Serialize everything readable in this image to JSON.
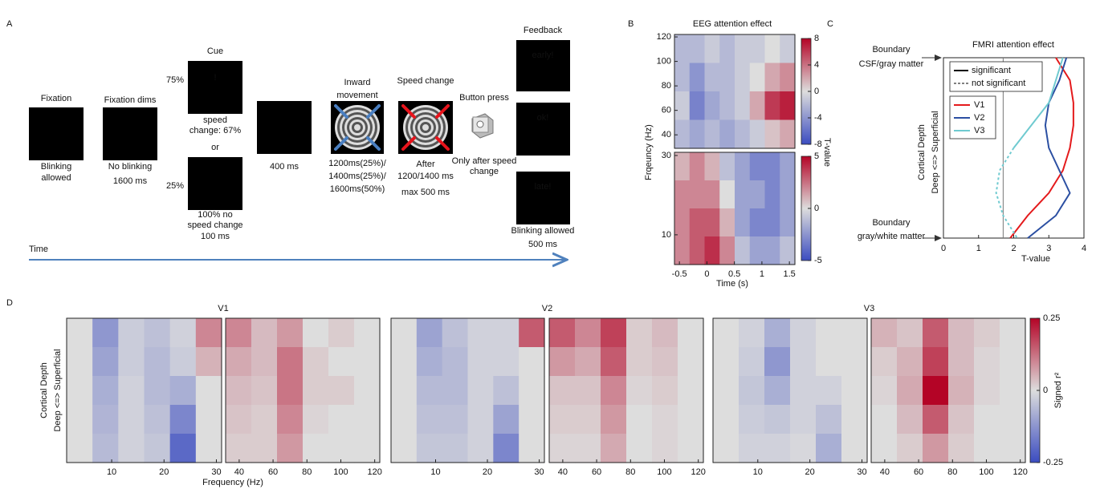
{
  "panel_labels": [
    "A",
    "B",
    "C",
    "D"
  ],
  "panel_a": {
    "fixation": {
      "title": "Fixation",
      "caption": [
        "Blinking",
        "allowed"
      ]
    },
    "fixation_dims": {
      "title": "Fixation dims",
      "caption": [
        "No blinking"
      ],
      "duration": "1600 ms"
    },
    "cue": {
      "title": "Cue",
      "symbol": "!",
      "valid_pct": "75%",
      "valid_caption": [
        "speed",
        "change: 67%"
      ],
      "or": "or",
      "invalid_pct": "25%",
      "invalid_caption": [
        "100% no",
        "speed change",
        "100 ms"
      ]
    },
    "delay": {
      "caption": "400 ms"
    },
    "inward": {
      "title": [
        "Inward",
        "movement"
      ],
      "caption": [
        "1200ms(25%)/",
        "1400ms(25%)/",
        "1600ms(50%)"
      ]
    },
    "speed_change": {
      "title": "Speed change",
      "caption": [
        "After",
        "1200/1400 ms",
        "max 500 ms"
      ]
    },
    "button": {
      "title": "Button press",
      "caption": [
        "Only after speed",
        "change"
      ]
    },
    "feedback": {
      "title": "Feedback",
      "messages": [
        "early!",
        "ok!",
        "late!"
      ],
      "caption": "Blinking allowed",
      "duration": "500 ms"
    },
    "time_label": "Time"
  },
  "panel_b": {
    "type": "heatmap",
    "title": "EEG attention effect",
    "ylabel": "Frqeuncy (Hz)",
    "xlabel": "Time (s)",
    "clabel": "T-value",
    "xlim": [
      -0.59,
      1.6
    ],
    "xticks": [
      -0.5,
      0,
      0.5,
      1,
      1.5
    ],
    "maps": [
      {
        "ylim": [
          29,
          122
        ],
        "yticks": [
          40,
          60,
          80,
          100,
          120
        ],
        "clim": [
          -8,
          8
        ],
        "cticks": [
          -8,
          -4,
          0,
          4,
          8
        ],
        "values": [
          [
            -2,
            -2,
            -1,
            -2,
            -1,
            -1,
            0,
            -1
          ],
          [
            -2,
            -4,
            -2,
            -2,
            -1,
            0,
            2,
            3
          ],
          [
            -1,
            -5,
            -3,
            -2,
            -1,
            2,
            6,
            7
          ],
          [
            -2,
            -3,
            -2,
            -3,
            -2,
            -1,
            1,
            2
          ]
        ]
      },
      {
        "ylim": [
          2.5,
          30.8
        ],
        "yticks": [
          10,
          30
        ],
        "clim": [
          -5,
          5
        ],
        "cticks": [
          -5,
          0,
          5
        ],
        "values": [
          [
            1,
            2,
            1,
            -1,
            -2,
            -3,
            -3,
            -2
          ],
          [
            2,
            2,
            2,
            0,
            -2,
            -2,
            -3,
            -2
          ],
          [
            2,
            3,
            3,
            1,
            -2,
            -3,
            -3,
            -2
          ],
          [
            2,
            3,
            4,
            2,
            -1,
            -2,
            -2,
            -1
          ]
        ]
      }
    ]
  },
  "panel_c": {
    "type": "line",
    "title": "FMRI attention effect",
    "xlabel": "T-value",
    "ylabel": [
      "Cortical Depth",
      "Deep <=> Superficial"
    ],
    "boundary_top": [
      "Boundary",
      "CSF/gray matter"
    ],
    "boundary_bottom": [
      "Boundary",
      "gray/white matter"
    ],
    "xlim": [
      0,
      4
    ],
    "xticks": [
      0,
      1,
      2,
      3,
      4
    ],
    "threshold": 1.7,
    "style_legend": [
      "significant",
      "not significant"
    ],
    "categories": [
      null,
      null,
      null,
      null,
      null,
      null,
      null,
      null,
      null
    ],
    "series": [
      {
        "name": "V1",
        "color": "#e41a1c",
        "values": [
          3.2,
          3.6,
          3.7,
          3.7,
          3.6,
          3.4,
          3.0,
          2.4,
          1.9
        ]
      },
      {
        "name": "V2",
        "color": "#2b4fa2",
        "values": [
          3.5,
          3.3,
          3.0,
          2.9,
          3.0,
          3.3,
          3.6,
          3.2,
          2.4
        ]
      },
      {
        "name": "V3",
        "color": "#6fcad0",
        "values": [
          3.4,
          3.2,
          3.0,
          2.5,
          2.0,
          1.6,
          1.5,
          1.7,
          2.1
        ]
      }
    ]
  },
  "panel_d": {
    "type": "heatmap",
    "xlabel": "Frequency (Hz)",
    "ylabel": [
      "Cortical Depth",
      "Deep <=> Superficial"
    ],
    "clabel": "Signed r²",
    "low_xlim": [
      1.4,
      31
    ],
    "low_xticks": [
      10,
      20,
      30
    ],
    "high_xlim": [
      32,
      123
    ],
    "high_xticks": [
      40,
      60,
      80,
      100,
      120
    ],
    "clim": [
      -0.25,
      0.25
    ],
    "cticks": [
      -0.25,
      0,
      0.25
    ],
    "groups": [
      {
        "title": "V1",
        "low": [
          [
            0,
            -0.12,
            -0.03,
            -0.05,
            -0.02,
            0.1
          ],
          [
            0,
            -0.1,
            -0.03,
            -0.06,
            -0.03,
            0.05
          ],
          [
            0,
            -0.08,
            -0.02,
            -0.06,
            -0.08,
            0
          ],
          [
            0,
            -0.07,
            -0.02,
            -0.05,
            -0.15,
            0
          ],
          [
            0,
            -0.06,
            -0.02,
            -0.04,
            -0.2,
            0
          ]
        ],
        "high": [
          [
            0.1,
            0.04,
            0.08,
            0,
            0.02,
            0
          ],
          [
            0.06,
            0.04,
            0.12,
            0.02,
            0,
            0
          ],
          [
            0.04,
            0.03,
            0.12,
            0.02,
            0.02,
            0
          ],
          [
            0.03,
            0.02,
            0.1,
            0.01,
            0,
            0
          ],
          [
            0.02,
            0.02,
            0.08,
            0,
            0,
            0
          ]
        ]
      },
      {
        "title": "V2",
        "low": [
          [
            0,
            -0.1,
            -0.05,
            -0.02,
            -0.02,
            0.15
          ],
          [
            0,
            -0.08,
            -0.06,
            -0.02,
            -0.02,
            0
          ],
          [
            0,
            -0.06,
            -0.06,
            -0.02,
            -0.05,
            0
          ],
          [
            0,
            -0.05,
            -0.05,
            -0.02,
            -0.1,
            0
          ],
          [
            0,
            -0.04,
            -0.04,
            -0.02,
            -0.15,
            0
          ]
        ],
        "high": [
          [
            0.15,
            0.1,
            0.18,
            0.02,
            0.04,
            0
          ],
          [
            0.08,
            0.06,
            0.15,
            0.02,
            0.03,
            0
          ],
          [
            0.03,
            0.03,
            0.1,
            0.01,
            0.02,
            0
          ],
          [
            0.02,
            0.02,
            0.08,
            0,
            0.01,
            0
          ],
          [
            0.01,
            0.01,
            0.06,
            0,
            0.01,
            0
          ]
        ]
      },
      {
        "title": "V3",
        "low": [
          [
            0,
            -0.02,
            -0.08,
            -0.02,
            0,
            0
          ],
          [
            0,
            -0.03,
            -0.12,
            -0.02,
            0,
            0
          ],
          [
            0,
            -0.04,
            -0.08,
            -0.02,
            -0.02,
            0
          ],
          [
            0,
            -0.03,
            -0.04,
            -0.02,
            -0.05,
            0
          ],
          [
            0,
            -0.02,
            -0.02,
            -0.01,
            -0.08,
            0
          ]
        ],
        "high": [
          [
            0.05,
            0.03,
            0.15,
            0.04,
            0.02,
            0
          ],
          [
            0.02,
            0.05,
            0.18,
            0.04,
            0.01,
            0
          ],
          [
            0.01,
            0.06,
            0.25,
            0.05,
            0.01,
            0
          ],
          [
            0,
            0.04,
            0.15,
            0.03,
            0,
            0
          ],
          [
            0,
            0.02,
            0.08,
            0.02,
            0,
            0
          ]
        ]
      }
    ]
  }
}
